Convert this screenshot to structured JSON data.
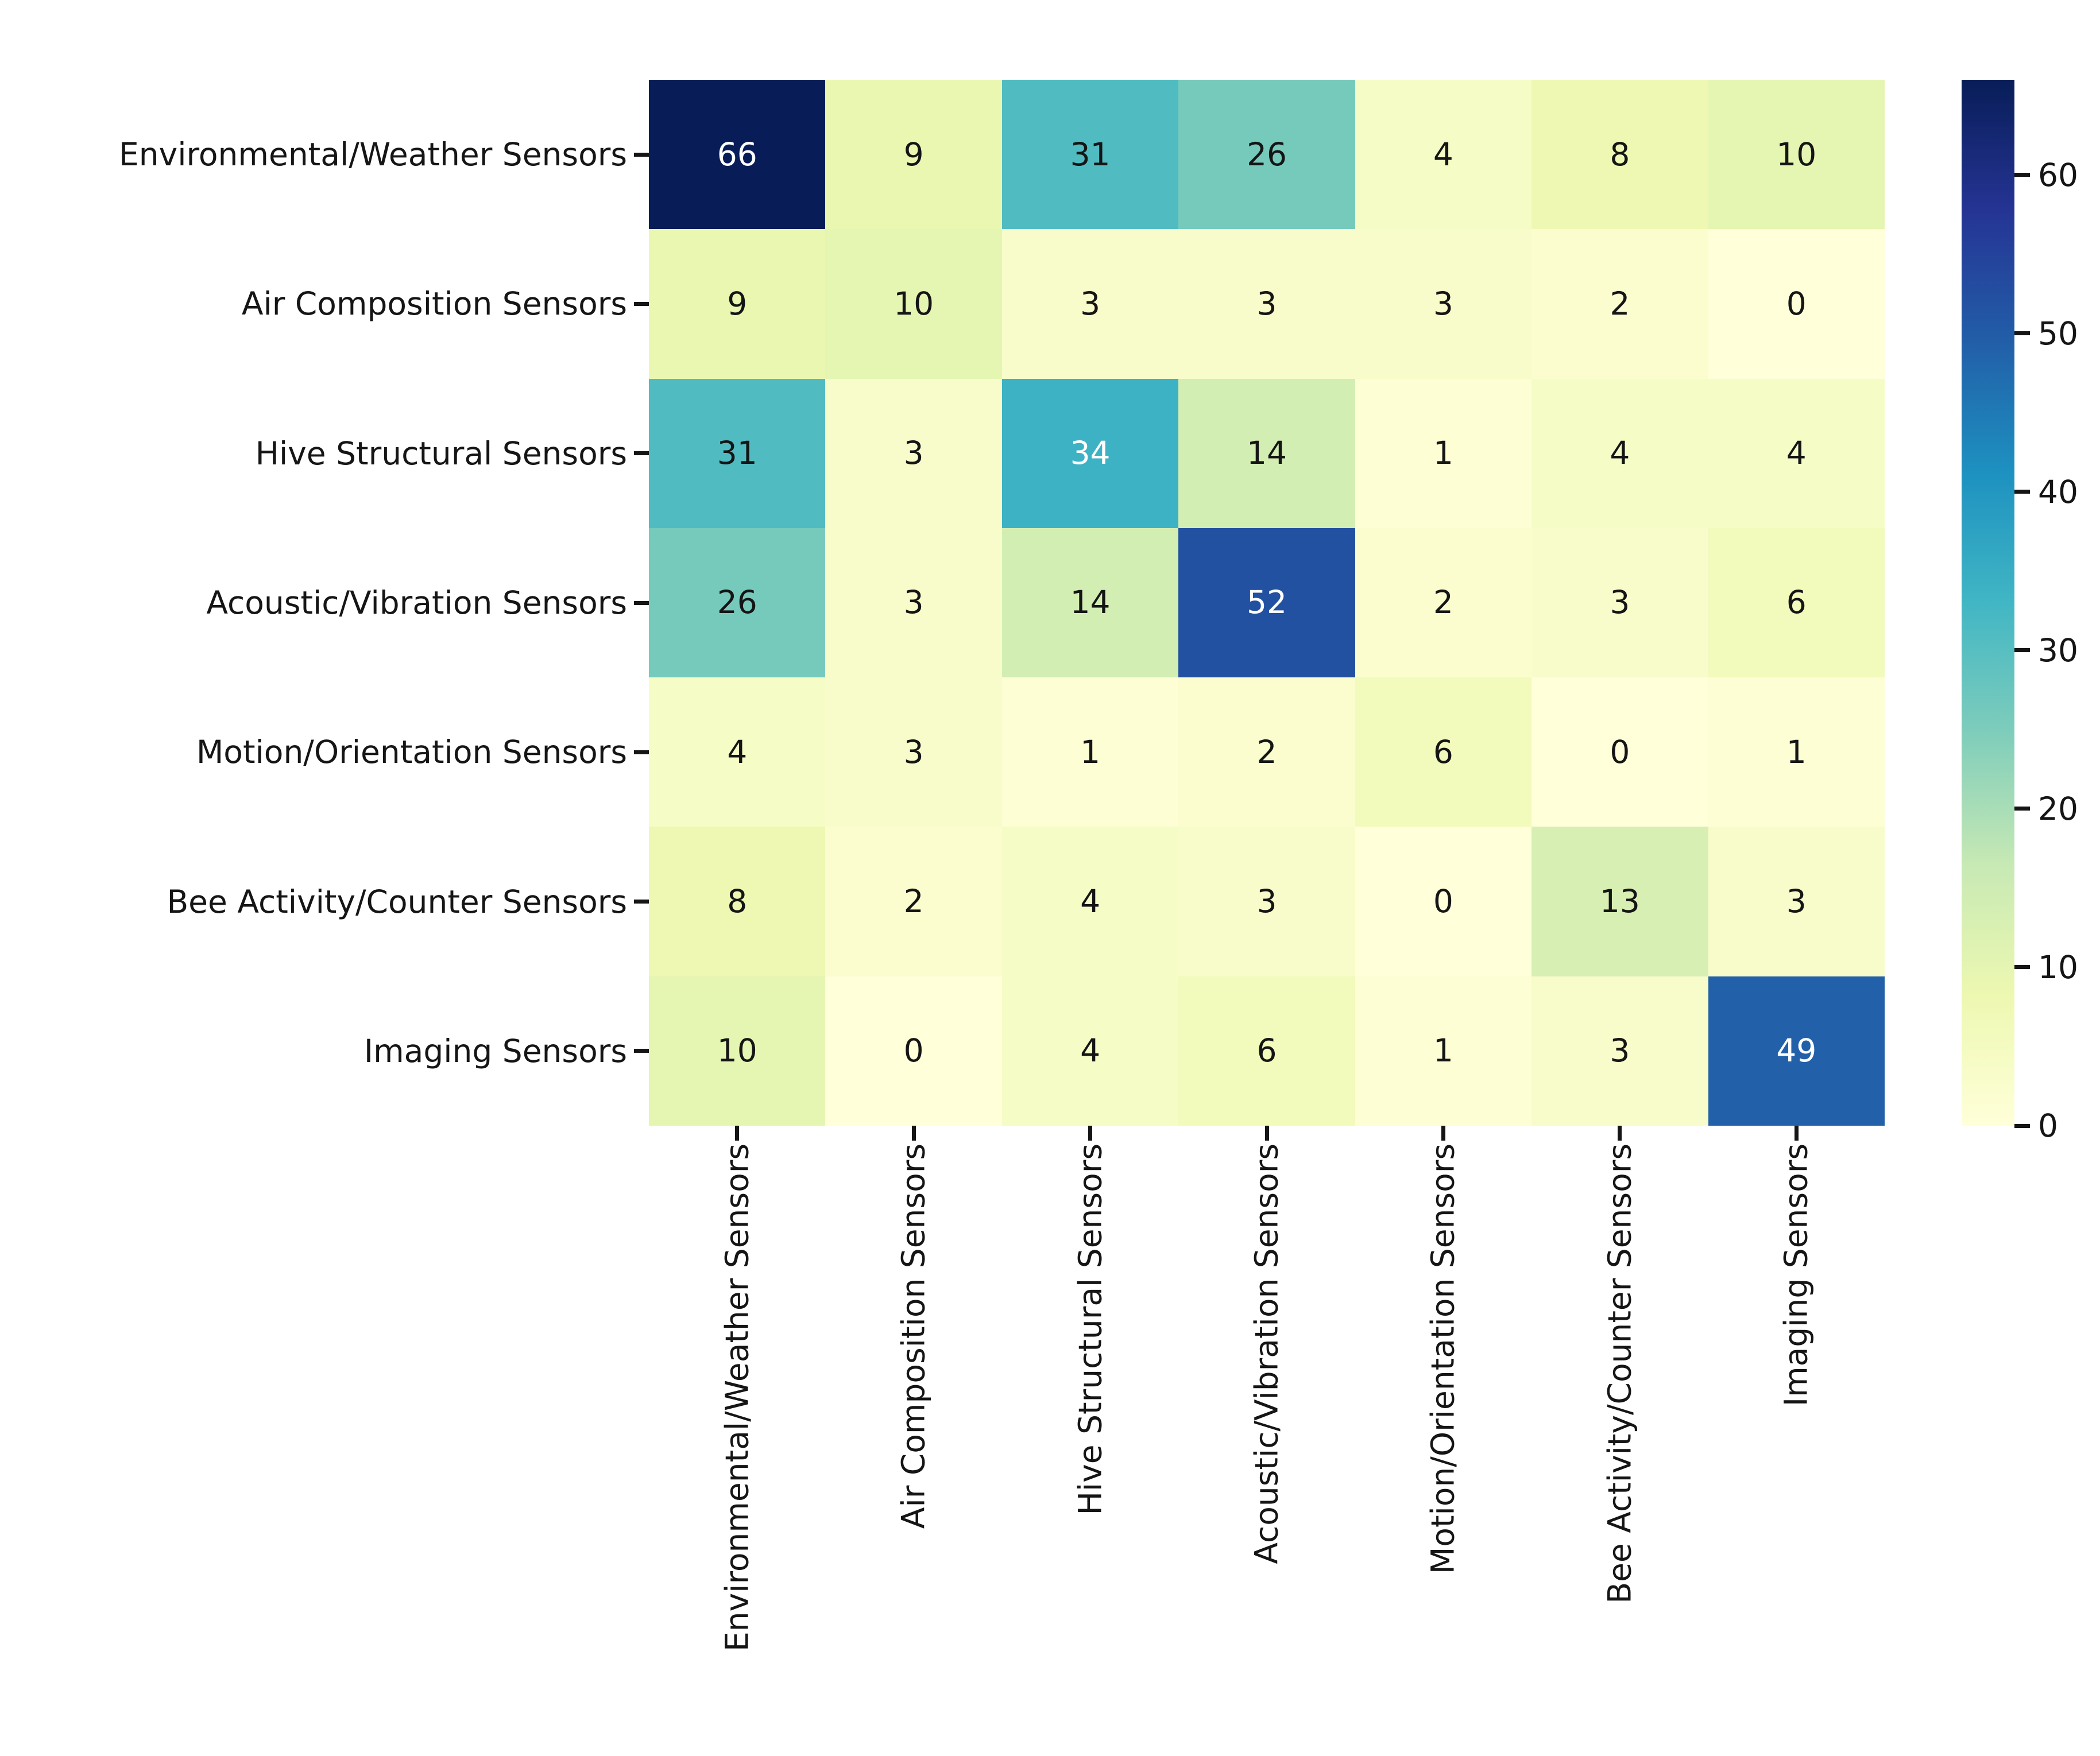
{
  "figure": {
    "background": "#ffffff",
    "axis_text_color": "#151515",
    "tick_color": "#151515"
  },
  "chart_data": {
    "type": "heatmap",
    "title": "",
    "xlabel": "",
    "ylabel": "",
    "row_labels": [
      "Environmental/Weather Sensors",
      "Air Composition Sensors",
      "Hive Structural Sensors",
      "Acoustic/Vibration Sensors",
      "Motion/Orientation Sensors",
      "Bee Activity/Counter Sensors",
      "Imaging Sensors"
    ],
    "col_labels": [
      "Environmental/Weather Sensors",
      "Air Composition Sensors",
      "Hive Structural Sensors",
      "Acoustic/Vibration Sensors",
      "Motion/Orientation Sensors",
      "Bee Activity/Counter Sensors",
      "Imaging Sensors"
    ],
    "matrix": [
      [
        66,
        9,
        31,
        26,
        4,
        8,
        10
      ],
      [
        9,
        10,
        3,
        3,
        3,
        2,
        0
      ],
      [
        31,
        3,
        34,
        14,
        1,
        4,
        4
      ],
      [
        26,
        3,
        14,
        52,
        2,
        3,
        6
      ],
      [
        4,
        3,
        1,
        2,
        6,
        0,
        1
      ],
      [
        8,
        2,
        4,
        3,
        0,
        13,
        3
      ],
      [
        10,
        0,
        4,
        6,
        1,
        3,
        49
      ]
    ],
    "annotated": true,
    "vmin": 0,
    "vmax": 66,
    "colormap": "YlGnBu",
    "colormap_stops": [
      "#ffffd9",
      "#edf8b1",
      "#c7e9b4",
      "#7fcdbb",
      "#41b6c4",
      "#1d91c0",
      "#225ea8",
      "#253494",
      "#081d58"
    ],
    "colorbar_ticks": [
      0,
      10,
      20,
      30,
      40,
      50,
      60
    ],
    "colorbar_position": "right",
    "annotation_text_dark": "#151515",
    "annotation_text_light": "#ffffff",
    "grid": false
  }
}
